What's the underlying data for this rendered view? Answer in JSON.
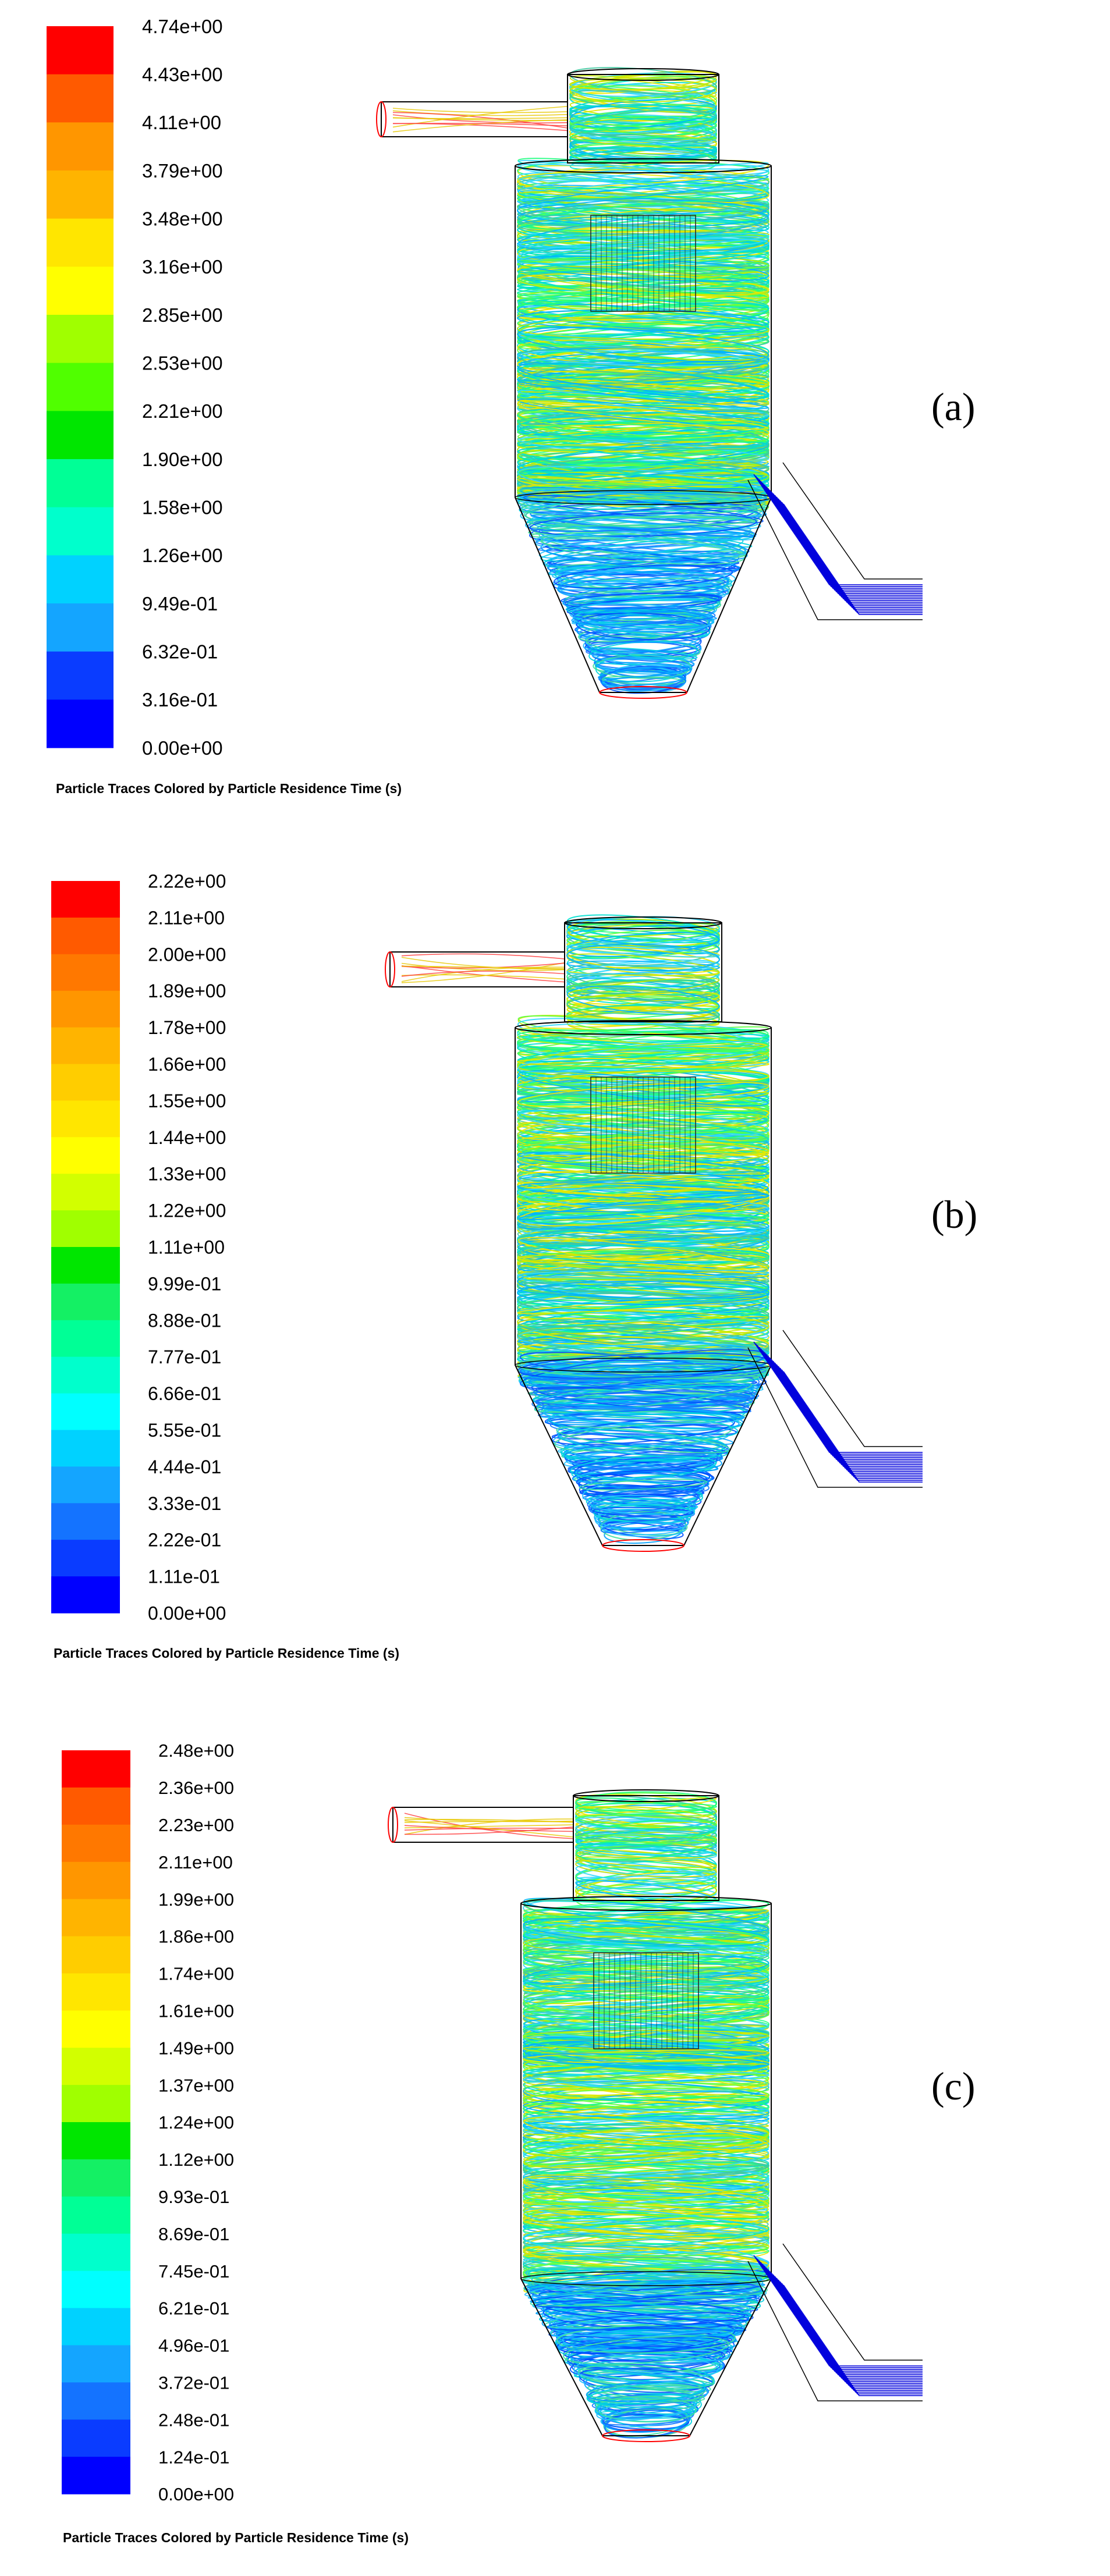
{
  "panels": [
    {
      "id": "a",
      "label": "(a)",
      "caption": "Particle Traces Colored by Particle Residence Time (s)",
      "legend_ticks": [
        "4.74e+00",
        "4.43e+00",
        "4.11e+00",
        "3.79e+00",
        "3.48e+00",
        "3.16e+00",
        "2.85e+00",
        "2.53e+00",
        "2.21e+00",
        "1.90e+00",
        "1.58e+00",
        "1.26e+00",
        "9.49e-01",
        "6.32e-01",
        "3.16e-01",
        "0.00e+00"
      ]
    },
    {
      "id": "b",
      "label": "(b)",
      "caption": "Particle Traces Colored by Particle Residence Time (s)",
      "legend_ticks": [
        "2.22e+00",
        "2.11e+00",
        "2.00e+00",
        "1.89e+00",
        "1.78e+00",
        "1.66e+00",
        "1.55e+00",
        "1.44e+00",
        "1.33e+00",
        "1.22e+00",
        "1.11e+00",
        "9.99e-01",
        "8.88e-01",
        "7.77e-01",
        "6.66e-01",
        "5.55e-01",
        "4.44e-01",
        "3.33e-01",
        "2.22e-01",
        "1.11e-01",
        "0.00e+00"
      ]
    },
    {
      "id": "c",
      "label": "(c)",
      "caption": "Particle Traces Colored by Particle Residence Time (s)",
      "legend_ticks": [
        "2.48e+00",
        "2.36e+00",
        "2.23e+00",
        "2.11e+00",
        "1.99e+00",
        "1.86e+00",
        "1.74e+00",
        "1.61e+00",
        "1.49e+00",
        "1.37e+00",
        "1.24e+00",
        "1.12e+00",
        "9.93e-01",
        "8.69e-01",
        "7.45e-01",
        "6.21e-01",
        "4.96e-01",
        "3.72e-01",
        "2.48e-01",
        "1.24e-01",
        "0.00e+00"
      ]
    }
  ],
  "colormap": [
    "#0000ff",
    "#0a3cff",
    "#1473ff",
    "#14a5ff",
    "#00d2ff",
    "#00ffff",
    "#00ffcc",
    "#00ff96",
    "#14f064",
    "#00e600",
    "#50ff00",
    "#a0ff00",
    "#d2ff00",
    "#ffff00",
    "#ffe600",
    "#ffcd00",
    "#ffb400",
    "#ff9600",
    "#ff7800",
    "#ff5a00",
    "#ff0000"
  ],
  "trace_colors": [
    "#00e0d0",
    "#30d8ff",
    "#60ff40",
    "#c8e800",
    "#40c8a0",
    "#00b4ff",
    "#20ff80",
    "#e8e800"
  ],
  "outline_color": "#000000",
  "outlet_color": "#0000dd",
  "inlet_color": "#ff0000"
}
